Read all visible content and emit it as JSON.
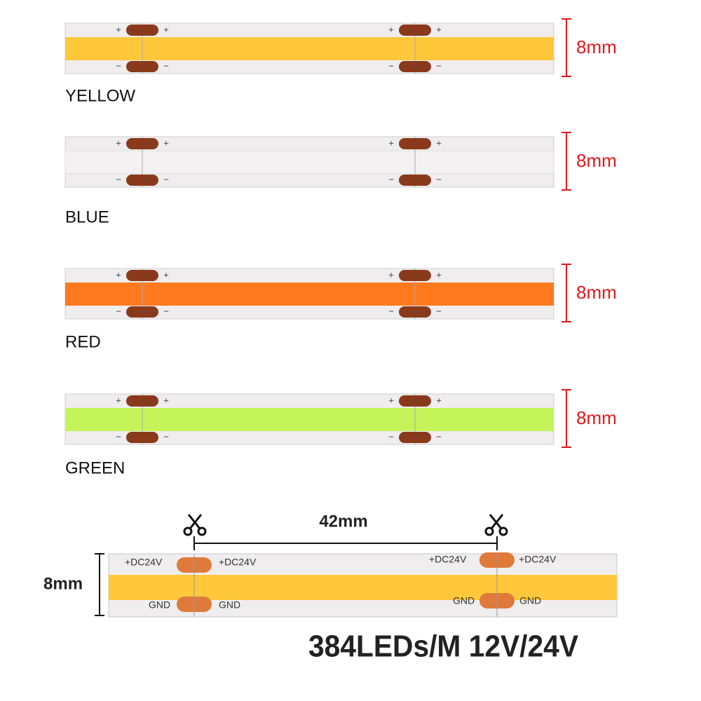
{
  "strips": [
    {
      "label": "YELLOW",
      "width": "8mm"
    },
    {
      "label": "BLUE",
      "width": "8mm"
    },
    {
      "label": "RED",
      "width": "8mm"
    },
    {
      "label": "GREEN",
      "width": "8mm"
    }
  ],
  "pad_signs": {
    "plus": "+",
    "minus": "−"
  },
  "detail": {
    "spacing": "42mm",
    "width": "8mm",
    "positive": "+DC24V",
    "ground": "GND",
    "spec": "384LEDs/M 12V/24V"
  }
}
